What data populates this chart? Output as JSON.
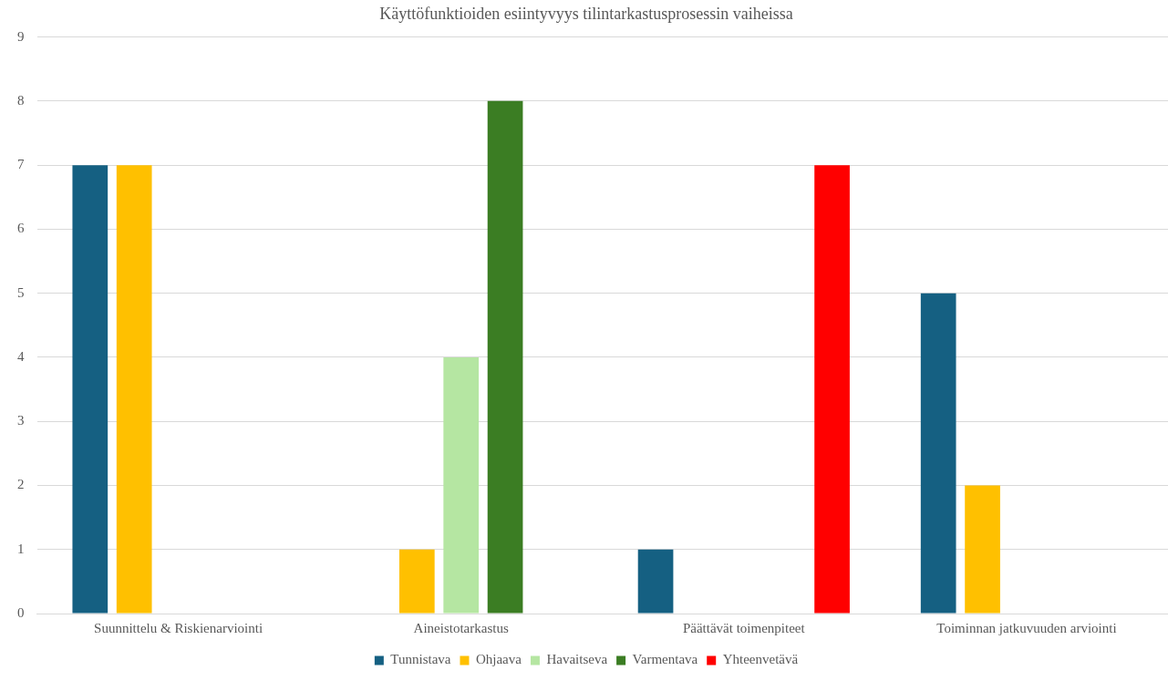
{
  "chart_data": {
    "type": "bar",
    "title": "Käyttöfunktioiden esiintyvyys tilintarkastusprosessin vaiheissa",
    "categories": [
      "Suunnittelu & Riskienarviointi",
      "Aineistotarkastus",
      "Päättävät toimenpiteet",
      "Toiminnan jatkuvuuden arviointi"
    ],
    "series": [
      {
        "name": "Tunnistava",
        "color": "#156082",
        "values": [
          7,
          null,
          1,
          5
        ]
      },
      {
        "name": "Ohjaava",
        "color": "#ffc000",
        "values": [
          7,
          1,
          null,
          2
        ]
      },
      {
        "name": "Havaitseva",
        "color": "#b5e6a2",
        "values": [
          null,
          4,
          null,
          null
        ]
      },
      {
        "name": "Varmentava",
        "color": "#3b7d23",
        "values": [
          null,
          8,
          null,
          null
        ]
      },
      {
        "name": "Yhteenvetävä",
        "color": "#ff0000",
        "values": [
          null,
          null,
          7,
          null
        ]
      }
    ],
    "ylim": [
      0,
      9
    ],
    "yticks": [
      0,
      1,
      2,
      3,
      4,
      5,
      6,
      7,
      8,
      9
    ],
    "grid": "y",
    "legend": "bottom"
  }
}
